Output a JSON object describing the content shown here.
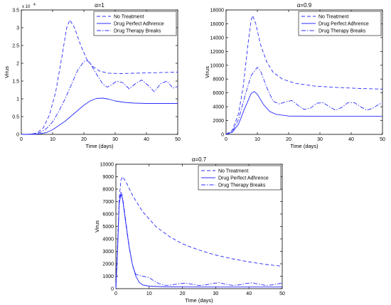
{
  "chart_data": [
    {
      "type": "line",
      "title": "α=1",
      "xlabel": "Time (days)",
      "ylabel": "Virus",
      "xlim": [
        0,
        50
      ],
      "ylim": [
        0,
        35000
      ],
      "yscale_note": "x 10",
      "yscale_exp": "4",
      "x_ticks": [
        "0",
        "10",
        "20",
        "30",
        "40",
        "50"
      ],
      "y_ticks": [
        "0",
        "0.5",
        "1",
        "1.5",
        "2",
        "2.5",
        "3",
        "3.5"
      ],
      "legend": "top-right",
      "series": [
        {
          "name": "No Treatment",
          "style": "dashed",
          "points": [
            [
              0,
              0
            ],
            [
              3,
              60
            ],
            [
              5,
              400
            ],
            [
              7,
              1800
            ],
            [
              9,
              5500
            ],
            [
              11,
              12000
            ],
            [
              13,
              22000
            ],
            [
              14.5,
              30000
            ],
            [
              15.5,
              32200
            ],
            [
              17,
              30000
            ],
            [
              19,
              25000
            ],
            [
              21,
              21000
            ],
            [
              23,
              19000
            ],
            [
              25,
              17800
            ],
            [
              28,
              17200
            ],
            [
              32,
              17100
            ],
            [
              40,
              17300
            ],
            [
              50,
              17500
            ]
          ]
        },
        {
          "name": "Drug Perfect Adhrence",
          "style": "solid",
          "points": [
            [
              0,
              0
            ],
            [
              4,
              40
            ],
            [
              6,
              150
            ],
            [
              8,
              500
            ],
            [
              10,
              1300
            ],
            [
              12,
              2500
            ],
            [
              14,
              3700
            ],
            [
              16,
              5200
            ],
            [
              18,
              6700
            ],
            [
              20,
              8200
            ],
            [
              22,
              9400
            ],
            [
              24,
              10100
            ],
            [
              26,
              10200
            ],
            [
              28,
              9900
            ],
            [
              30,
              9400
            ],
            [
              33,
              9000
            ],
            [
              36,
              8800
            ],
            [
              40,
              8700
            ],
            [
              50,
              8700
            ]
          ]
        },
        {
          "name": "Drug Therapy Breaks",
          "style": "dashdot",
          "points": [
            [
              0,
              0
            ],
            [
              4,
              100
            ],
            [
              6,
              500
            ],
            [
              8,
              1600
            ],
            [
              10,
              3500
            ],
            [
              12,
              6500
            ],
            [
              14,
              10000
            ],
            [
              16,
              14000
            ],
            [
              18,
              18000
            ],
            [
              20,
              20500
            ],
            [
              21,
              20800
            ],
            [
              22,
              20000
            ],
            [
              24,
              17000
            ],
            [
              26,
              14200
            ],
            [
              27.5,
              13300
            ],
            [
              29,
              14000
            ],
            [
              30.5,
              15000
            ],
            [
              32.5,
              14500
            ],
            [
              34.5,
              12800
            ],
            [
              36.5,
              14300
            ],
            [
              38.5,
              15300
            ],
            [
              40.5,
              13800
            ],
            [
              42.5,
              12000
            ],
            [
              44.5,
              14200
            ],
            [
              46.5,
              15000
            ],
            [
              48.5,
              13000
            ],
            [
              50,
              13500
            ]
          ]
        }
      ]
    },
    {
      "type": "line",
      "title": "α=0.9",
      "xlabel": "Time (days)",
      "ylabel": "Virus",
      "xlim": [
        0,
        50
      ],
      "ylim": [
        0,
        18000
      ],
      "x_ticks": [
        "0",
        "10",
        "20",
        "30",
        "40",
        "50"
      ],
      "y_ticks": [
        "0",
        "2000",
        "4000",
        "6000",
        "8000",
        "10000",
        "12000",
        "14000",
        "16000",
        "18000"
      ],
      "legend": "top-right",
      "series": [
        {
          "name": "No Treatment",
          "style": "dashed",
          "points": [
            [
              0,
              0
            ],
            [
              2,
              600
            ],
            [
              4,
              3000
            ],
            [
              5.5,
              7000
            ],
            [
              7,
              13000
            ],
            [
              8,
              16500
            ],
            [
              8.5,
              17200
            ],
            [
              9.5,
              16000
            ],
            [
              11,
              13000
            ],
            [
              13,
              10500
            ],
            [
              15,
              9000
            ],
            [
              18,
              8000
            ],
            [
              22,
              7400
            ],
            [
              28,
              7000
            ],
            [
              35,
              6800
            ],
            [
              42,
              6650
            ],
            [
              50,
              6550
            ]
          ]
        },
        {
          "name": "Drug Perfect Adhrence",
          "style": "solid",
          "points": [
            [
              0,
              0
            ],
            [
              2,
              300
            ],
            [
              4,
              1500
            ],
            [
              6,
              3800
            ],
            [
              8,
              5900
            ],
            [
              9,
              6200
            ],
            [
              10,
              5800
            ],
            [
              12,
              4300
            ],
            [
              14,
              3300
            ],
            [
              16,
              2900
            ],
            [
              20,
              2650
            ],
            [
              30,
              2620
            ],
            [
              40,
              2620
            ],
            [
              50,
              2620
            ]
          ]
        },
        {
          "name": "Drug Therapy Breaks",
          "style": "dashdot",
          "points": [
            [
              0,
              0
            ],
            [
              2,
              400
            ],
            [
              4,
              2200
            ],
            [
              6,
              5500
            ],
            [
              8,
              8500
            ],
            [
              10,
              9700
            ],
            [
              11,
              9200
            ],
            [
              13,
              6800
            ],
            [
              15,
              4800
            ],
            [
              17,
              4400
            ],
            [
              19,
              4700
            ],
            [
              21,
              4900
            ],
            [
              23,
              4200
            ],
            [
              25,
              3600
            ],
            [
              27,
              3800
            ],
            [
              29,
              4500
            ],
            [
              31,
              4600
            ],
            [
              33,
              4000
            ],
            [
              35,
              3500
            ],
            [
              37,
              3900
            ],
            [
              39,
              4600
            ],
            [
              41,
              4600
            ],
            [
              43,
              4000
            ],
            [
              45,
              3500
            ],
            [
              47,
              3800
            ],
            [
              49,
              4400
            ],
            [
              50,
              4500
            ]
          ]
        }
      ]
    },
    {
      "type": "line",
      "title": "α=0.7",
      "xlabel": "Time (days)",
      "ylabel": "Virus",
      "xlim": [
        0,
        50
      ],
      "ylim": [
        0,
        10000
      ],
      "x_ticks": [
        "0",
        "10",
        "20",
        "30",
        "40",
        "50"
      ],
      "y_ticks": [
        "0",
        "1000",
        "2000",
        "3000",
        "4000",
        "5000",
        "6000",
        "7000",
        "8000",
        "9000",
        "10000"
      ],
      "legend": "top-right",
      "series": [
        {
          "name": "No Treatment",
          "style": "dashed",
          "points": [
            [
              0,
              0
            ],
            [
              0.5,
              3500
            ],
            [
              1,
              7200
            ],
            [
              1.5,
              8700
            ],
            [
              2,
              9000
            ],
            [
              3,
              8600
            ],
            [
              5,
              7500
            ],
            [
              8,
              6200
            ],
            [
              12,
              5000
            ],
            [
              16,
              4200
            ],
            [
              20,
              3600
            ],
            [
              25,
              3100
            ],
            [
              30,
              2700
            ],
            [
              35,
              2400
            ],
            [
              40,
              2150
            ],
            [
              45,
              1950
            ],
            [
              50,
              1800
            ]
          ]
        },
        {
          "name": "Drug Perfect Adhrence",
          "style": "solid",
          "points": [
            [
              0,
              0
            ],
            [
              0.5,
              3000
            ],
            [
              1,
              6800
            ],
            [
              1.5,
              7600
            ],
            [
              2,
              7200
            ],
            [
              3,
              5200
            ],
            [
              4,
              3300
            ],
            [
              5,
              1900
            ],
            [
              6,
              1000
            ],
            [
              7,
              520
            ],
            [
              8,
              300
            ],
            [
              10,
              200
            ],
            [
              15,
              150
            ],
            [
              25,
              130
            ],
            [
              35,
              130
            ],
            [
              50,
              130
            ]
          ]
        },
        {
          "name": "Drug Therapy Breaks",
          "style": "dashdot",
          "points": [
            [
              0,
              0
            ],
            [
              0.5,
              3200
            ],
            [
              1,
              7000
            ],
            [
              1.5,
              7800
            ],
            [
              2,
              7400
            ],
            [
              3,
              5400
            ],
            [
              4,
              3400
            ],
            [
              5,
              1900
            ],
            [
              6,
              1150
            ],
            [
              8,
              1000
            ],
            [
              10,
              900
            ],
            [
              11,
              700
            ],
            [
              13,
              400
            ],
            [
              15,
              260
            ],
            [
              17,
              300
            ],
            [
              19,
              400
            ],
            [
              21,
              450
            ],
            [
              23,
              350
            ],
            [
              25,
              250
            ],
            [
              27,
              300
            ],
            [
              29,
              420
            ],
            [
              31,
              480
            ],
            [
              33,
              360
            ],
            [
              35,
              260
            ],
            [
              37,
              300
            ],
            [
              39,
              410
            ],
            [
              41,
              470
            ],
            [
              43,
              360
            ],
            [
              45,
              260
            ],
            [
              47,
              300
            ],
            [
              49,
              400
            ],
            [
              50,
              430
            ]
          ]
        }
      ]
    }
  ]
}
